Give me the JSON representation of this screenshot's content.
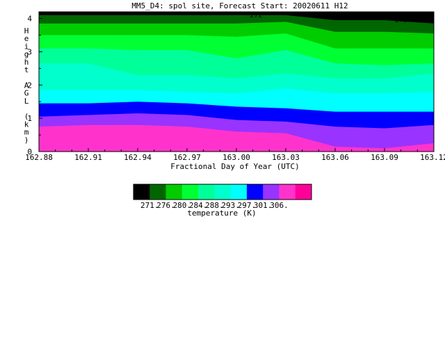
{
  "chart_data": {
    "type": "contour",
    "title": "MM5_D4: spol site,  Forecast Start: 20020611 H12",
    "xlabel": "Fractional Day of Year (UTC)",
    "ylabel": "Height AGL (km)",
    "xlim": [
      162.88,
      163.12
    ],
    "ylim": [
      0,
      4.2
    ],
    "x_ticks": [
      "162.88",
      "162.91",
      "162.94",
      "162.97",
      "163.00",
      "163.03",
      "163.06",
      "163.09",
      "163.12"
    ],
    "y_ticks": [
      "0",
      "1",
      "2",
      "3",
      "4"
    ],
    "contour_labels": [
      {
        "text": "272",
        "x": 163.012,
        "y": 4.12
      },
      {
        "text": "272",
        "x": 163.065,
        "y": 4.1
      },
      {
        "text": "272",
        "x": 163.1,
        "y": 3.98
      }
    ],
    "x": [
      162.88,
      162.91,
      162.94,
      162.97,
      163.0,
      163.03,
      163.06,
      163.09,
      163.12
    ],
    "bands": [
      {
        "color": "#ff33cc",
        "upper_km": [
          0.75,
          0.8,
          0.8,
          0.75,
          0.6,
          0.55,
          0.15,
          0.1,
          0.25
        ]
      },
      {
        "color": "#9933ff",
        "upper_km": [
          1.05,
          1.1,
          1.15,
          1.1,
          0.95,
          0.9,
          0.75,
          0.7,
          0.8
        ]
      },
      {
        "color": "#0000ff",
        "upper_km": [
          1.45,
          1.45,
          1.5,
          1.45,
          1.35,
          1.3,
          1.2,
          1.2,
          1.2
        ]
      },
      {
        "color": "#00ffff",
        "upper_km": [
          1.85,
          1.85,
          1.85,
          1.8,
          1.75,
          1.9,
          1.75,
          1.75,
          1.8
        ]
      },
      {
        "color": "#00ffcc",
        "upper_km": [
          2.65,
          2.65,
          2.3,
          2.3,
          2.2,
          2.35,
          2.2,
          2.2,
          2.35
        ]
      },
      {
        "color": "#00ff99",
        "upper_km": [
          3.1,
          3.1,
          3.05,
          3.05,
          2.8,
          3.05,
          2.65,
          2.6,
          2.65
        ]
      },
      {
        "color": "#00ff33",
        "upper_km": [
          3.5,
          3.5,
          3.5,
          3.5,
          3.45,
          3.55,
          3.1,
          3.1,
          3.1
        ]
      },
      {
        "color": "#00cc00",
        "upper_km": [
          3.85,
          3.85,
          3.85,
          3.85,
          3.85,
          3.9,
          3.6,
          3.6,
          3.55
        ]
      },
      {
        "color": "#006600",
        "upper_km": [
          4.1,
          4.1,
          4.1,
          4.1,
          4.1,
          4.1,
          3.95,
          3.95,
          3.85
        ]
      },
      {
        "color": "#000000",
        "upper_km": [
          4.2,
          4.2,
          4.2,
          4.2,
          4.2,
          4.2,
          4.2,
          4.2,
          4.2
        ]
      }
    ],
    "colorbar": {
      "label": "temperature (K)",
      "ticks": [
        "271.",
        "276.",
        "280.",
        "284.",
        "288.",
        "293.",
        "297.",
        "301.",
        "306."
      ],
      "colors": [
        "#000000",
        "#006600",
        "#00cc00",
        "#00ff33",
        "#00ff99",
        "#00ffcc",
        "#00ffff",
        "#0000ff",
        "#9933ff",
        "#ff33cc",
        "#ff0099"
      ]
    }
  }
}
